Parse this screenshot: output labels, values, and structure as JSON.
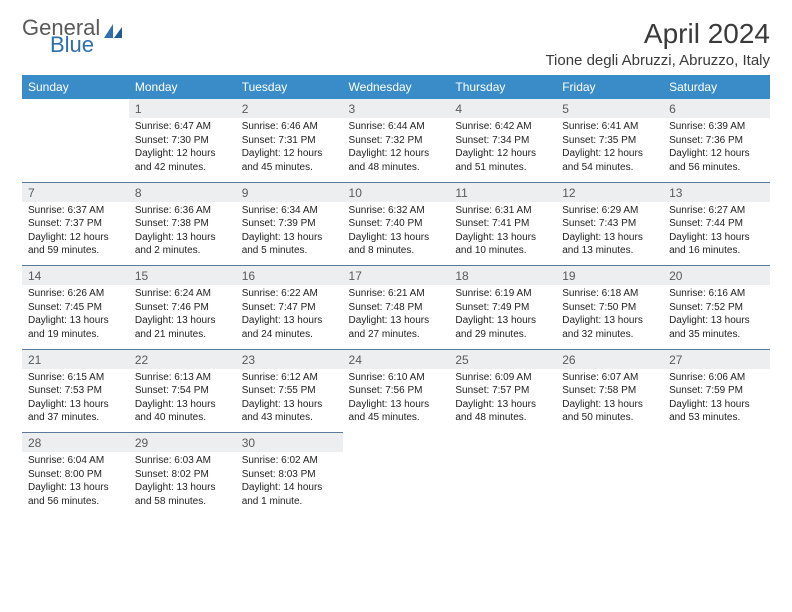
{
  "brand": {
    "part1": "General",
    "part2": "Blue"
  },
  "title": "April 2024",
  "location": "Tione degli Abruzzi, Abruzzo, Italy",
  "dayHeaders": [
    "Sunday",
    "Monday",
    "Tuesday",
    "Wednesday",
    "Thursday",
    "Friday",
    "Saturday"
  ],
  "colors": {
    "headerBg": "#3a8cc9",
    "dayBg": "#eceeef",
    "ruleColor": "#5a7a9a",
    "brandGrey": "#5a5a5a",
    "brandBlue": "#2f6fab"
  },
  "weeks": [
    [
      null,
      {
        "n": "1",
        "sunrise": "6:47 AM",
        "sunset": "7:30 PM",
        "daylight": "12 hours and 42 minutes."
      },
      {
        "n": "2",
        "sunrise": "6:46 AM",
        "sunset": "7:31 PM",
        "daylight": "12 hours and 45 minutes."
      },
      {
        "n": "3",
        "sunrise": "6:44 AM",
        "sunset": "7:32 PM",
        "daylight": "12 hours and 48 minutes."
      },
      {
        "n": "4",
        "sunrise": "6:42 AM",
        "sunset": "7:34 PM",
        "daylight": "12 hours and 51 minutes."
      },
      {
        "n": "5",
        "sunrise": "6:41 AM",
        "sunset": "7:35 PM",
        "daylight": "12 hours and 54 minutes."
      },
      {
        "n": "6",
        "sunrise": "6:39 AM",
        "sunset": "7:36 PM",
        "daylight": "12 hours and 56 minutes."
      }
    ],
    [
      {
        "n": "7",
        "sunrise": "6:37 AM",
        "sunset": "7:37 PM",
        "daylight": "12 hours and 59 minutes."
      },
      {
        "n": "8",
        "sunrise": "6:36 AM",
        "sunset": "7:38 PM",
        "daylight": "13 hours and 2 minutes."
      },
      {
        "n": "9",
        "sunrise": "6:34 AM",
        "sunset": "7:39 PM",
        "daylight": "13 hours and 5 minutes."
      },
      {
        "n": "10",
        "sunrise": "6:32 AM",
        "sunset": "7:40 PM",
        "daylight": "13 hours and 8 minutes."
      },
      {
        "n": "11",
        "sunrise": "6:31 AM",
        "sunset": "7:41 PM",
        "daylight": "13 hours and 10 minutes."
      },
      {
        "n": "12",
        "sunrise": "6:29 AM",
        "sunset": "7:43 PM",
        "daylight": "13 hours and 13 minutes."
      },
      {
        "n": "13",
        "sunrise": "6:27 AM",
        "sunset": "7:44 PM",
        "daylight": "13 hours and 16 minutes."
      }
    ],
    [
      {
        "n": "14",
        "sunrise": "6:26 AM",
        "sunset": "7:45 PM",
        "daylight": "13 hours and 19 minutes."
      },
      {
        "n": "15",
        "sunrise": "6:24 AM",
        "sunset": "7:46 PM",
        "daylight": "13 hours and 21 minutes."
      },
      {
        "n": "16",
        "sunrise": "6:22 AM",
        "sunset": "7:47 PM",
        "daylight": "13 hours and 24 minutes."
      },
      {
        "n": "17",
        "sunrise": "6:21 AM",
        "sunset": "7:48 PM",
        "daylight": "13 hours and 27 minutes."
      },
      {
        "n": "18",
        "sunrise": "6:19 AM",
        "sunset": "7:49 PM",
        "daylight": "13 hours and 29 minutes."
      },
      {
        "n": "19",
        "sunrise": "6:18 AM",
        "sunset": "7:50 PM",
        "daylight": "13 hours and 32 minutes."
      },
      {
        "n": "20",
        "sunrise": "6:16 AM",
        "sunset": "7:52 PM",
        "daylight": "13 hours and 35 minutes."
      }
    ],
    [
      {
        "n": "21",
        "sunrise": "6:15 AM",
        "sunset": "7:53 PM",
        "daylight": "13 hours and 37 minutes."
      },
      {
        "n": "22",
        "sunrise": "6:13 AM",
        "sunset": "7:54 PM",
        "daylight": "13 hours and 40 minutes."
      },
      {
        "n": "23",
        "sunrise": "6:12 AM",
        "sunset": "7:55 PM",
        "daylight": "13 hours and 43 minutes."
      },
      {
        "n": "24",
        "sunrise": "6:10 AM",
        "sunset": "7:56 PM",
        "daylight": "13 hours and 45 minutes."
      },
      {
        "n": "25",
        "sunrise": "6:09 AM",
        "sunset": "7:57 PM",
        "daylight": "13 hours and 48 minutes."
      },
      {
        "n": "26",
        "sunrise": "6:07 AM",
        "sunset": "7:58 PM",
        "daylight": "13 hours and 50 minutes."
      },
      {
        "n": "27",
        "sunrise": "6:06 AM",
        "sunset": "7:59 PM",
        "daylight": "13 hours and 53 minutes."
      }
    ],
    [
      {
        "n": "28",
        "sunrise": "6:04 AM",
        "sunset": "8:00 PM",
        "daylight": "13 hours and 56 minutes."
      },
      {
        "n": "29",
        "sunrise": "6:03 AM",
        "sunset": "8:02 PM",
        "daylight": "13 hours and 58 minutes."
      },
      {
        "n": "30",
        "sunrise": "6:02 AM",
        "sunset": "8:03 PM",
        "daylight": "14 hours and 1 minute."
      },
      null,
      null,
      null,
      null
    ]
  ]
}
